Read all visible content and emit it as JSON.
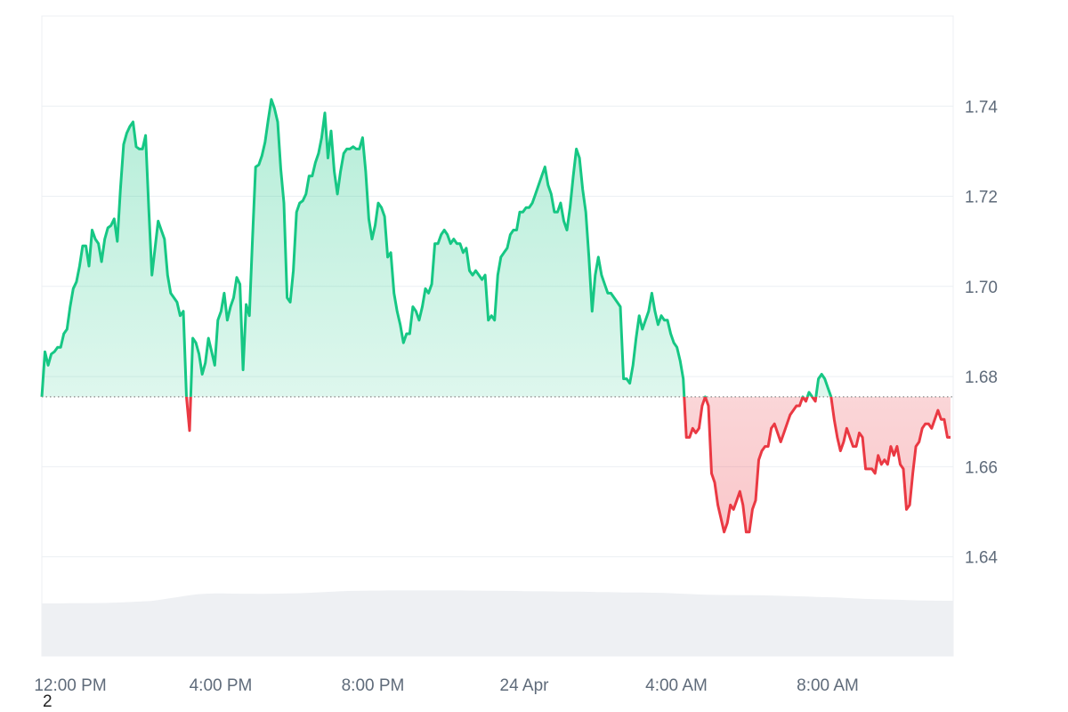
{
  "chart_data": {
    "type": "line",
    "baseline": 1.6755,
    "ylim": [
      1.618,
      1.76
    ],
    "y_ticks": [
      "1.64",
      "1.66",
      "1.68",
      "1.70",
      "1.72",
      "1.74"
    ],
    "x_ticks": [
      "12:00 PM",
      "4:00 PM",
      "8:00 PM",
      "24 Apr",
      "4:00 AM",
      "8:00 AM"
    ],
    "grid": true,
    "colors": {
      "above": "#16c784",
      "below": "#ea3943",
      "above_fill": "#16c784",
      "below_fill": "#ea3943",
      "volume": "#eef0f3",
      "grid": "#eceff3",
      "baseline": "#888888"
    },
    "series": [
      {
        "values": [
          1.6755,
          1.6855,
          1.6825,
          1.685,
          1.6855,
          1.6865,
          1.6865,
          1.6895,
          1.6905,
          1.6955,
          1.6995,
          1.701,
          1.7045,
          1.709,
          1.709,
          1.7045,
          1.7125,
          1.7105,
          1.7095,
          1.7055,
          1.7105,
          1.713,
          1.7135,
          1.715,
          1.71,
          1.7215,
          1.7315,
          1.734,
          1.7355,
          1.7365,
          1.731,
          1.7305,
          1.7305,
          1.7335,
          1.7175,
          1.7025,
          1.7085,
          1.7145,
          1.7125,
          1.7105,
          1.7025,
          1.6985,
          1.6975,
          1.6965,
          1.6935,
          1.6945,
          1.6755,
          1.668,
          1.6885,
          1.6875,
          1.685,
          1.6805,
          1.683,
          1.6885,
          1.6855,
          1.6825,
          1.6925,
          1.6945,
          1.6985,
          1.6925,
          1.6955,
          1.6975,
          1.702,
          1.7005,
          1.6815,
          1.696,
          1.6935,
          1.7105,
          1.7265,
          1.727,
          1.729,
          1.732,
          1.737,
          1.7415,
          1.7395,
          1.7365,
          1.726,
          1.7185,
          1.6975,
          1.6965,
          1.7035,
          1.7165,
          1.7185,
          1.719,
          1.7205,
          1.7245,
          1.7245,
          1.7275,
          1.7295,
          1.733,
          1.7385,
          1.7285,
          1.7345,
          1.7255,
          1.7205,
          1.7255,
          1.7295,
          1.7305,
          1.7305,
          1.731,
          1.7305,
          1.7305,
          1.733,
          1.7255,
          1.715,
          1.7105,
          1.7135,
          1.7185,
          1.7175,
          1.7155,
          1.7065,
          1.7075,
          1.6985,
          1.6945,
          1.6915,
          1.6875,
          1.6895,
          1.6895,
          1.6955,
          1.6945,
          1.6925,
          1.6955,
          1.6995,
          1.6985,
          1.7005,
          1.7095,
          1.7095,
          1.7115,
          1.7125,
          1.7115,
          1.7095,
          1.7105,
          1.7095,
          1.7095,
          1.7075,
          1.7085,
          1.7035,
          1.7025,
          1.7035,
          1.7025,
          1.7015,
          1.7025,
          1.6925,
          1.6935,
          1.6925,
          1.7025,
          1.7065,
          1.7075,
          1.7085,
          1.7115,
          1.7125,
          1.7125,
          1.7165,
          1.7165,
          1.7175,
          1.7175,
          1.7185,
          1.7205,
          1.7225,
          1.7245,
          1.7265,
          1.7225,
          1.7205,
          1.7165,
          1.7165,
          1.7185,
          1.7145,
          1.7125,
          1.7175,
          1.7245,
          1.7305,
          1.7285,
          1.7215,
          1.7165,
          1.7065,
          1.6945,
          1.7025,
          1.7065,
          1.7025,
          1.7005,
          1.6985,
          1.6985,
          1.6975,
          1.6965,
          1.6955,
          1.6795,
          1.6795,
          1.6785,
          1.6825,
          1.6885,
          1.6935,
          1.6905,
          1.6925,
          1.6945,
          1.6985,
          1.6945,
          1.6915,
          1.6935,
          1.6925,
          1.6925,
          1.6895,
          1.6875,
          1.6865,
          1.6835,
          1.6795,
          1.6665,
          1.6665,
          1.6685,
          1.6675,
          1.6685,
          1.6735,
          1.6755,
          1.6735,
          1.6585,
          1.6565,
          1.6515,
          1.6485,
          1.6455,
          1.6475,
          1.6515,
          1.6505,
          1.6525,
          1.6545,
          1.6515,
          1.6455,
          1.6455,
          1.6505,
          1.6525,
          1.6615,
          1.6635,
          1.6645,
          1.6645,
          1.6685,
          1.6695,
          1.6675,
          1.6655,
          1.6675,
          1.6695,
          1.6715,
          1.6725,
          1.6735,
          1.6735,
          1.6755,
          1.6745,
          1.6765,
          1.6755,
          1.6745,
          1.6795,
          1.6805,
          1.6795,
          1.6775,
          1.6755,
          1.6705,
          1.6665,
          1.6635,
          1.6655,
          1.6685,
          1.6665,
          1.6645,
          1.6645,
          1.6675,
          1.6665,
          1.6595,
          1.6595,
          1.6595,
          1.6585,
          1.6625,
          1.6605,
          1.6615,
          1.6605,
          1.6645,
          1.6625,
          1.6645,
          1.6605,
          1.6595,
          1.6505,
          1.6515,
          1.6585,
          1.6645,
          1.6655,
          1.6685,
          1.6695,
          1.6695,
          1.6685,
          1.6705,
          1.6725,
          1.6705,
          1.6705,
          1.6665,
          1.6665
        ]
      }
    ],
    "volume": [
      0.365,
      0.365,
      0.365,
      0.366,
      0.366,
      0.366,
      0.367,
      0.368,
      0.37,
      0.372,
      0.375,
      0.378,
      0.382,
      0.39,
      0.4,
      0.41,
      0.42,
      0.428,
      0.432,
      0.434,
      0.434,
      0.433,
      0.432,
      0.432,
      0.431,
      0.432,
      0.433,
      0.434,
      0.435,
      0.437,
      0.44,
      0.443,
      0.447,
      0.45,
      0.452,
      0.453,
      0.454,
      0.454,
      0.455,
      0.455,
      0.455,
      0.455,
      0.455,
      0.455,
      0.455,
      0.455,
      0.455,
      0.454,
      0.454,
      0.453,
      0.453,
      0.452,
      0.451,
      0.45,
      0.449,
      0.449,
      0.448,
      0.447,
      0.446,
      0.446,
      0.445,
      0.444,
      0.443,
      0.442,
      0.441,
      0.44,
      0.44,
      0.439,
      0.438,
      0.436,
      0.433,
      0.43,
      0.427,
      0.425,
      0.424,
      0.423,
      0.423,
      0.422,
      0.422,
      0.421,
      0.42,
      0.418,
      0.416,
      0.414,
      0.412,
      0.41,
      0.408,
      0.406,
      0.403,
      0.4,
      0.397,
      0.395,
      0.393,
      0.392,
      0.39,
      0.388,
      0.386,
      0.385,
      0.384,
      0.383,
      0.383
    ]
  },
  "footnote": "2"
}
